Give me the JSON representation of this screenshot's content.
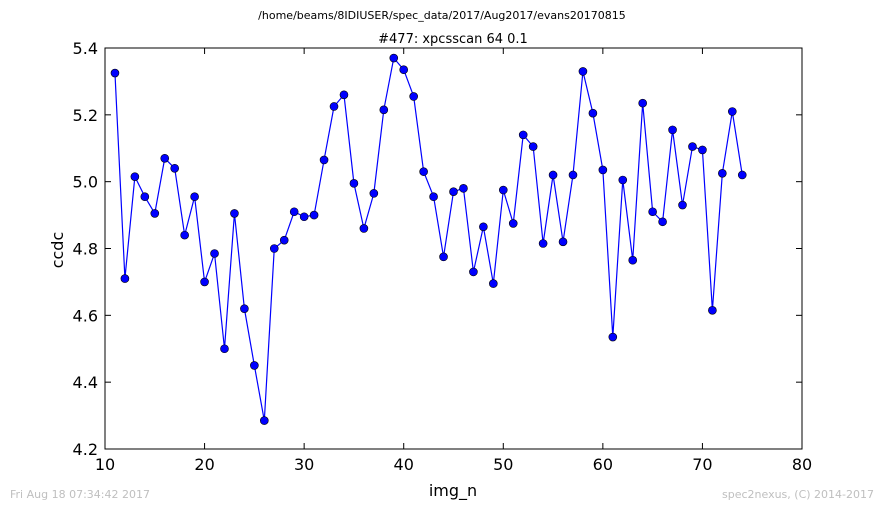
{
  "figure": {
    "suptitle": "/home/beams/8IDIUSER/spec_data/2017/Aug2017/evans20170815",
    "timestamp": "Fri Aug 18 07:34:42 2017",
    "credit": "spec2nexus, (C) 2014-2017"
  },
  "chart_data": {
    "type": "line",
    "title": "#477: xpcsscan 64 0.1",
    "xlabel": "img_n",
    "ylabel": "ccdc",
    "xlim": [
      10,
      80
    ],
    "ylim": [
      4.2,
      5.4
    ],
    "xticks": [
      "10",
      "20",
      "30",
      "40",
      "50",
      "60",
      "70",
      "80"
    ],
    "yticks": [
      "4.2",
      "4.4",
      "4.6",
      "4.8",
      "5.0",
      "5.2",
      "5.4"
    ],
    "grid": false,
    "line_color": "#0000ff",
    "marker_color": "#0000ff",
    "marker": "circle",
    "series": [
      {
        "x": [
          11,
          12,
          13,
          14,
          15,
          16,
          17,
          18,
          19,
          20,
          21,
          22,
          23,
          24,
          25,
          26,
          27,
          28,
          29,
          30,
          31,
          32,
          33,
          34,
          35,
          36,
          37,
          38,
          39,
          40,
          41,
          42,
          43,
          44,
          45,
          46,
          47,
          48,
          49,
          50,
          51,
          52,
          53,
          54,
          55,
          56,
          57,
          58,
          59,
          60,
          61,
          62,
          63,
          64,
          65,
          66,
          67,
          68,
          69,
          70,
          71,
          72,
          73,
          74
        ],
        "y": [
          5.325,
          4.71,
          5.015,
          4.955,
          4.905,
          5.07,
          5.04,
          4.84,
          4.955,
          4.7,
          4.785,
          4.5,
          4.905,
          4.62,
          4.45,
          4.285,
          4.8,
          4.825,
          4.91,
          4.895,
          4.9,
          5.065,
          5.225,
          5.26,
          4.995,
          4.86,
          4.965,
          5.215,
          5.37,
          5.335,
          5.255,
          5.03,
          4.955,
          4.775,
          4.97,
          4.98,
          4.73,
          4.865,
          4.695,
          4.975,
          4.875,
          5.14,
          5.105,
          4.815,
          5.02,
          4.82,
          5.02,
          5.33,
          5.205,
          5.035,
          4.535,
          5.005,
          4.765,
          5.235,
          4.91,
          4.88,
          5.155,
          4.93,
          5.105,
          5.095,
          4.615,
          5.025,
          5.21,
          5.02
        ]
      }
    ]
  }
}
